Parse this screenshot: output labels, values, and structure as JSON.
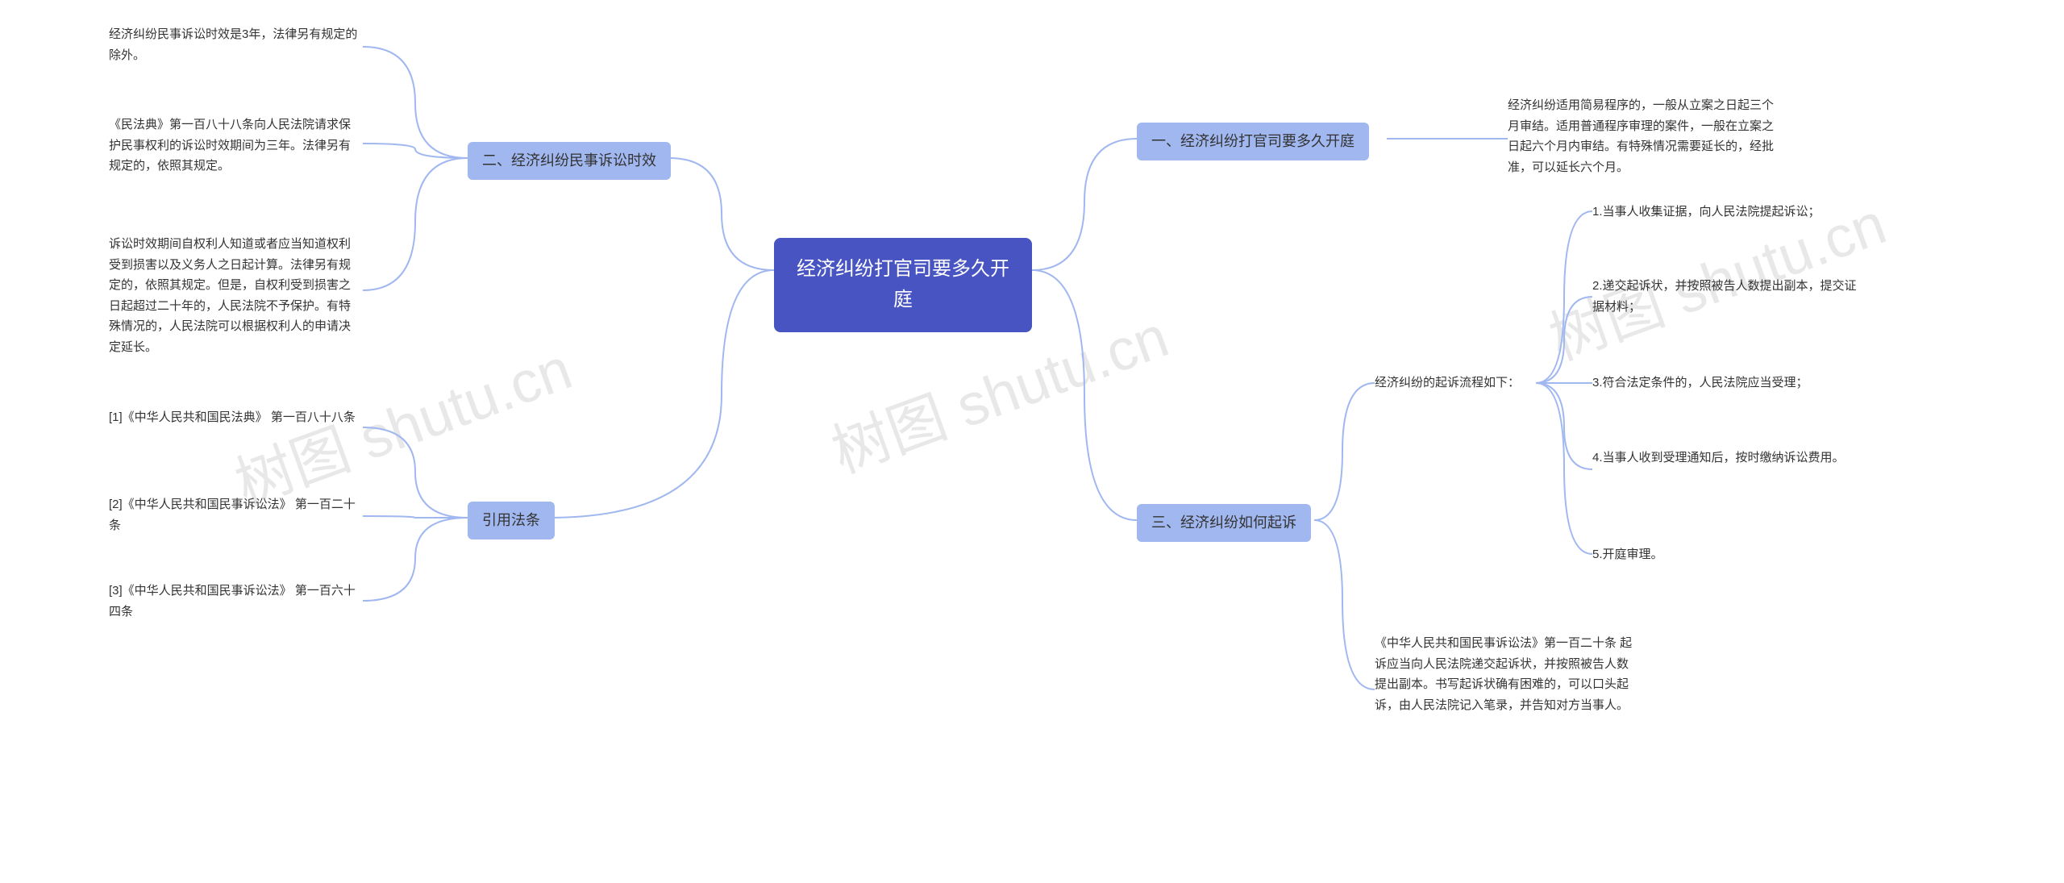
{
  "watermarks": {
    "w1": "树图 shutu.cn",
    "w2": "树图 shutu.cn",
    "w3": "树图 shutu.cn"
  },
  "center": {
    "title": "经济纠纷打官司要多久开\n庭"
  },
  "right": {
    "section1": {
      "title": "一、经济纠纷打官司要多久开庭",
      "leaf": "经济纠纷适用简易程序的，一般从立案之日起三个月审结。适用普通程序审理的案件，一般在立案之日起六个月内审结。有特殊情况需要延长的，经批准，可以延长六个月。"
    },
    "section3": {
      "title": "三、经济纠纷如何起诉",
      "process_title": "经济纠纷的起诉流程如下：",
      "steps": {
        "s1": "1.当事人收集证据，向人民法院提起诉讼；",
        "s2": "2.递交起诉状，并按照被告人数提出副本，提交证据材料；",
        "s3": "3.符合法定条件的，人民法院应当受理；",
        "s4": "4.当事人收到受理通知后，按时缴纳诉讼费用。",
        "s5": "5.开庭审理。"
      },
      "law": "《中华人民共和国民事诉讼法》第一百二十条 起诉应当向人民法院递交起诉状，并按照被告人数提出副本。书写起诉状确有困难的，可以口头起诉，由人民法院记入笔录，并告知对方当事人。"
    }
  },
  "left": {
    "section2": {
      "title": "二、经济纠纷民事诉讼时效",
      "leaf1": "经济纠纷民事诉讼时效是3年，法律另有规定的除外。",
      "leaf2": "《民法典》第一百八十八条向人民法院请求保护民事权利的诉讼时效期间为三年。法律另有规定的，依照其规定。",
      "leaf3": "诉讼时效期间自权利人知道或者应当知道权利受到损害以及义务人之日起计算。法律另有规定的，依照其规定。但是，自权利受到损害之日起超过二十年的，人民法院不予保护。有特殊情况的，人民法院可以根据权利人的申请决定延长。"
    },
    "citations": {
      "title": "引用法条",
      "c1": "[1]《中华人民共和国民法典》 第一百八十八条",
      "c2": "[2]《中华人民共和国民事诉讼法》 第一百二十条",
      "c3": "[3]《中华人民共和国民事诉讼法》 第一百六十四条"
    }
  },
  "style": {
    "center_bg": "#4754c1",
    "center_color": "#ffffff",
    "branch_bg": "#a1b7f0",
    "connector_color": "#a1b7f0",
    "text_color": "#333333",
    "background": "#ffffff",
    "watermark_color": "#e8e8e8",
    "center_fontsize": 24,
    "branch_fontsize": 18,
    "leaf_fontsize": 15
  }
}
